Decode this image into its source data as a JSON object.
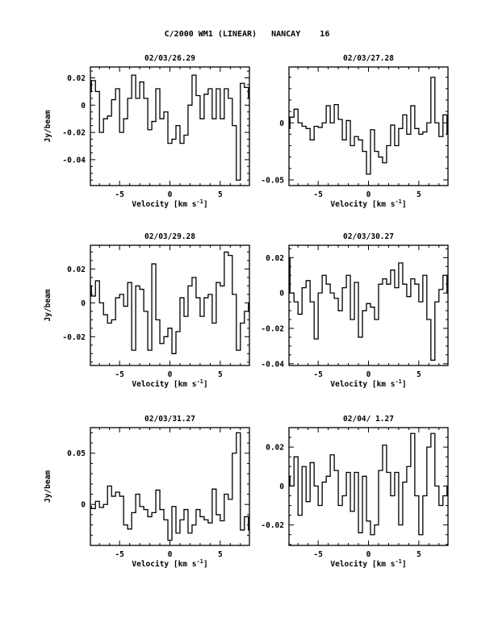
{
  "title": "C/2000 WM1 (LINEAR)   NANCAY    16",
  "chart_data": [
    {
      "type": "line",
      "title": "02/03/26.29",
      "xlabel": "Velocity [km s^-1]",
      "ylabel": "Jy/beam",
      "xlim": [
        -7.9,
        7.9
      ],
      "ylim": [
        -0.059,
        0.028
      ],
      "yticks": [
        {
          "v": 0.02,
          "label": "0.02"
        },
        {
          "v": 0,
          "label": "0"
        },
        {
          "v": -0.02,
          "label": "-0.02"
        },
        {
          "v": -0.04,
          "label": "-0.04"
        }
      ],
      "yminor": 0.005,
      "xticks": [
        {
          "v": -5,
          "label": "-5"
        },
        {
          "v": 0,
          "label": "0"
        },
        {
          "v": 5,
          "label": "5"
        }
      ],
      "x_start": -8,
      "x_step": 0.4,
      "values": [
        0.01,
        0.018,
        0.01,
        -0.02,
        -0.01,
        -0.008,
        0.004,
        0.012,
        -0.02,
        -0.01,
        0.005,
        0.022,
        0.005,
        0.017,
        0.005,
        -0.018,
        -0.012,
        0.012,
        -0.01,
        -0.005,
        -0.028,
        -0.025,
        -0.015,
        -0.028,
        -0.022,
        0.0,
        0.022,
        0.007,
        -0.01,
        0.008,
        0.012,
        -0.01,
        0.012,
        -0.01,
        0.012,
        0.005,
        -0.015,
        -0.055,
        0.016,
        0.013,
        0.005
      ]
    },
    {
      "type": "line",
      "title": "02/03/27.28",
      "xlabel": "Velocity [km s^-1]",
      "ylabel": "",
      "xlim": [
        -7.9,
        7.9
      ],
      "ylim": [
        -0.055,
        0.049
      ],
      "yticks": [
        {
          "v": 0,
          "label": "0"
        },
        {
          "v": -0.05,
          "label": "-0.05"
        }
      ],
      "yminor": 0.01,
      "xticks": [
        {
          "v": -5,
          "label": "-5"
        },
        {
          "v": 0,
          "label": "0"
        },
        {
          "v": 5,
          "label": "5"
        }
      ],
      "x_start": -8,
      "x_step": 0.4,
      "values": [
        -0.005,
        0.005,
        0.012,
        0.0,
        -0.003,
        -0.005,
        -0.015,
        -0.003,
        -0.004,
        0.0,
        0.015,
        0.0,
        0.016,
        0.003,
        -0.015,
        0.002,
        -0.02,
        -0.012,
        -0.015,
        -0.025,
        -0.045,
        -0.006,
        -0.025,
        -0.03,
        -0.035,
        -0.02,
        -0.002,
        -0.02,
        -0.005,
        0.007,
        -0.01,
        0.015,
        -0.005,
        -0.01,
        -0.008,
        0.0,
        0.04,
        0.0,
        -0.012,
        0.007,
        -0.01
      ]
    },
    {
      "type": "line",
      "title": "02/03/29.28",
      "xlabel": "Velocity [km s^-1]",
      "ylabel": "Jy/beam",
      "xlim": [
        -7.9,
        7.9
      ],
      "ylim": [
        -0.037,
        0.034
      ],
      "yticks": [
        {
          "v": 0.02,
          "label": "0.02"
        },
        {
          "v": 0,
          "label": "0"
        },
        {
          "v": -0.02,
          "label": "-0.02"
        }
      ],
      "yminor": 0.005,
      "xticks": [
        {
          "v": -5,
          "label": "-5"
        },
        {
          "v": 0,
          "label": "0"
        },
        {
          "v": 5,
          "label": "5"
        }
      ],
      "x_start": -8,
      "x_step": 0.4,
      "values": [
        0.01,
        0.004,
        0.013,
        0.0,
        -0.007,
        -0.012,
        -0.01,
        0.003,
        0.005,
        -0.002,
        0.012,
        -0.028,
        0.01,
        0.008,
        -0.005,
        -0.028,
        0.023,
        -0.01,
        -0.024,
        -0.02,
        -0.015,
        -0.03,
        -0.017,
        0.003,
        -0.008,
        0.01,
        0.015,
        0.003,
        -0.008,
        0.003,
        0.005,
        -0.012,
        0.012,
        0.01,
        0.03,
        0.028,
        0.005,
        -0.028,
        -0.012,
        -0.005,
        0.0
      ]
    },
    {
      "type": "line",
      "title": "02/03/30.27",
      "xlabel": "Velocity [km s^-1]",
      "ylabel": "",
      "xlim": [
        -7.9,
        7.9
      ],
      "ylim": [
        -0.041,
        0.027
      ],
      "yticks": [
        {
          "v": 0.02,
          "label": "0.02"
        },
        {
          "v": 0,
          "label": "0"
        },
        {
          "v": -0.02,
          "label": "-0.02"
        },
        {
          "v": -0.04,
          "label": "-0.04"
        }
      ],
      "yminor": 0.005,
      "xticks": [
        {
          "v": -5,
          "label": "-5"
        },
        {
          "v": 0,
          "label": "0"
        },
        {
          "v": 5,
          "label": "5"
        }
      ],
      "x_start": -8,
      "x_step": 0.4,
      "values": [
        0.02,
        0.0,
        -0.005,
        -0.012,
        0.003,
        0.007,
        -0.005,
        -0.026,
        0.0,
        0.01,
        0.005,
        0.0,
        -0.003,
        -0.01,
        0.003,
        0.01,
        -0.015,
        0.006,
        -0.025,
        -0.01,
        -0.006,
        -0.008,
        -0.015,
        0.005,
        0.008,
        0.005,
        0.013,
        0.003,
        0.017,
        0.005,
        -0.002,
        0.008,
        0.005,
        -0.005,
        0.01,
        -0.015,
        -0.038,
        -0.005,
        0.002,
        0.01,
        0.0
      ]
    },
    {
      "type": "line",
      "title": "02/03/31.27",
      "xlabel": "Velocity [km s^-1]",
      "ylabel": "Jy/beam",
      "xlim": [
        -7.9,
        7.9
      ],
      "ylim": [
        -0.04,
        0.075
      ],
      "yticks": [
        {
          "v": 0.05,
          "label": "0.05"
        },
        {
          "v": 0,
          "label": "0"
        }
      ],
      "yminor": 0.01,
      "xticks": [
        {
          "v": -5,
          "label": "-5"
        },
        {
          "v": 0,
          "label": "0"
        },
        {
          "v": 5,
          "label": "5"
        }
      ],
      "x_start": -8,
      "x_step": 0.4,
      "values": [
        -0.002,
        -0.004,
        0.003,
        -0.003,
        0.0,
        0.018,
        0.008,
        0.012,
        0.008,
        -0.02,
        -0.024,
        -0.008,
        0.01,
        -0.002,
        -0.005,
        -0.012,
        -0.008,
        0.014,
        -0.005,
        -0.015,
        -0.035,
        -0.002,
        -0.028,
        -0.015,
        -0.005,
        -0.028,
        -0.02,
        -0.005,
        -0.012,
        -0.015,
        -0.018,
        0.015,
        -0.01,
        -0.016,
        0.01,
        0.005,
        0.05,
        0.07,
        -0.025,
        -0.012,
        -0.025
      ]
    },
    {
      "type": "line",
      "title": "02/04/ 1.27",
      "xlabel": "Velocity [km s^-1]",
      "ylabel": "",
      "xlim": [
        -7.9,
        7.9
      ],
      "ylim": [
        -0.0305,
        0.03
      ],
      "yticks": [
        {
          "v": 0.02,
          "label": "0.02"
        },
        {
          "v": 0,
          "label": "0"
        },
        {
          "v": -0.02,
          "label": "-0.02"
        }
      ],
      "yminor": 0.005,
      "xticks": [
        {
          "v": -5,
          "label": "-5"
        },
        {
          "v": 0,
          "label": "0"
        },
        {
          "v": 5,
          "label": "5"
        }
      ],
      "x_start": -8,
      "x_step": 0.4,
      "values": [
        0.005,
        0.0,
        0.015,
        -0.015,
        0.01,
        -0.008,
        0.012,
        0.0,
        -0.01,
        0.002,
        0.005,
        0.016,
        0.008,
        -0.01,
        -0.005,
        0.007,
        -0.013,
        0.007,
        -0.024,
        0.005,
        -0.018,
        -0.025,
        -0.02,
        0.008,
        0.021,
        0.007,
        -0.005,
        0.007,
        -0.02,
        0.002,
        0.01,
        0.027,
        -0.005,
        -0.025,
        -0.005,
        0.02,
        0.027,
        0.0,
        -0.01,
        -0.005,
        0.0
      ]
    }
  ]
}
